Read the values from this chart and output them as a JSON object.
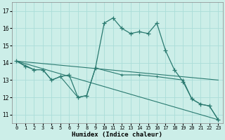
{
  "xlabel": "Humidex (Indice chaleur)",
  "background_color": "#cceee8",
  "grid_color": "#aaddd8",
  "line_color": "#2a7a70",
  "xlim": [
    -0.5,
    23.5
  ],
  "ylim": [
    10.5,
    17.5
  ],
  "yticks": [
    11,
    12,
    13,
    14,
    15,
    16,
    17
  ],
  "xticks": [
    0,
    1,
    2,
    3,
    4,
    5,
    6,
    7,
    8,
    9,
    10,
    11,
    12,
    13,
    14,
    15,
    16,
    17,
    18,
    19,
    20,
    21,
    22,
    23
  ],
  "series1_x": [
    0,
    1,
    2,
    3,
    4,
    5,
    6,
    7,
    8,
    9,
    10,
    11,
    12,
    13,
    14,
    15,
    16,
    17,
    18,
    19,
    20,
    21,
    22,
    23
  ],
  "series1_y": [
    14.1,
    13.8,
    13.6,
    13.6,
    13.0,
    13.2,
    13.3,
    12.0,
    12.1,
    13.7,
    16.3,
    16.6,
    16.0,
    15.7,
    15.8,
    15.7,
    16.3,
    14.7,
    13.6,
    12.9,
    11.9,
    11.6,
    11.5,
    10.7
  ],
  "series2_x": [
    0,
    2,
    3,
    4,
    5,
    7,
    8,
    9,
    12,
    14,
    16,
    19,
    20,
    21,
    22,
    23
  ],
  "series2_y": [
    14.1,
    13.6,
    13.6,
    13.0,
    13.2,
    12.0,
    12.1,
    13.7,
    13.3,
    13.3,
    13.2,
    13.0,
    11.9,
    11.6,
    11.5,
    10.7
  ],
  "series3_x": [
    0,
    23
  ],
  "series3_y": [
    14.1,
    13.0
  ],
  "series4_x": [
    0,
    23
  ],
  "series4_y": [
    14.1,
    10.7
  ]
}
